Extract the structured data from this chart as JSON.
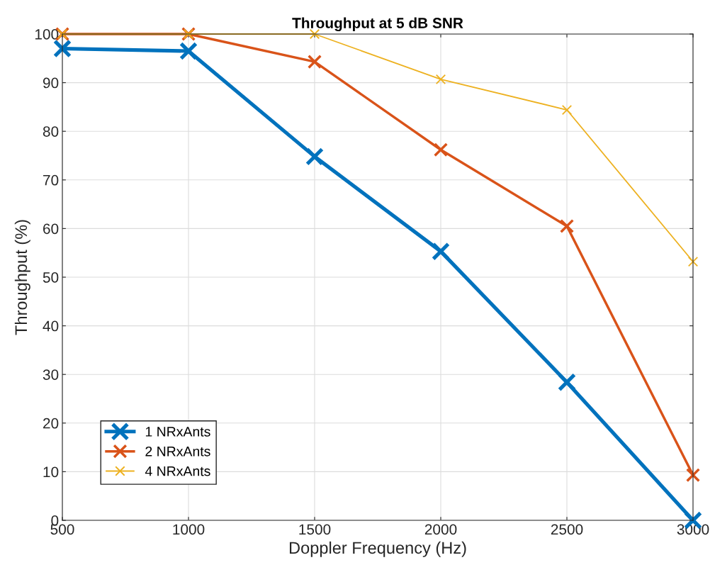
{
  "chart_data": {
    "type": "line",
    "title": "Throughput at 5 dB SNR",
    "xlabel": "Doppler Frequency (Hz)",
    "ylabel": "Throughput (%)",
    "x": [
      500,
      1000,
      1500,
      2000,
      2500,
      3000
    ],
    "series": [
      {
        "name": "1 NRxAnts",
        "color": "#0072bd",
        "values": [
          97,
          96.5,
          74.8,
          55.3,
          28.4,
          0
        ]
      },
      {
        "name": "2 NRxAnts",
        "color": "#d95319",
        "values": [
          100,
          100,
          94.3,
          76.2,
          60.5,
          9.3
        ]
      },
      {
        "name": "4 NRxAnts",
        "color": "#edb120",
        "values": [
          100,
          100,
          100,
          90.7,
          84.4,
          53.2
        ]
      }
    ],
    "xlim": [
      500,
      3000
    ],
    "xticks": [
      500,
      1000,
      1500,
      2000,
      2500,
      3000
    ],
    "ylim": [
      0,
      100
    ],
    "yticks": [
      0,
      10,
      20,
      30,
      40,
      50,
      60,
      70,
      80,
      90,
      100
    ],
    "grid": true,
    "legend": "bottom left",
    "marker": "cross",
    "line_style": "solid"
  }
}
